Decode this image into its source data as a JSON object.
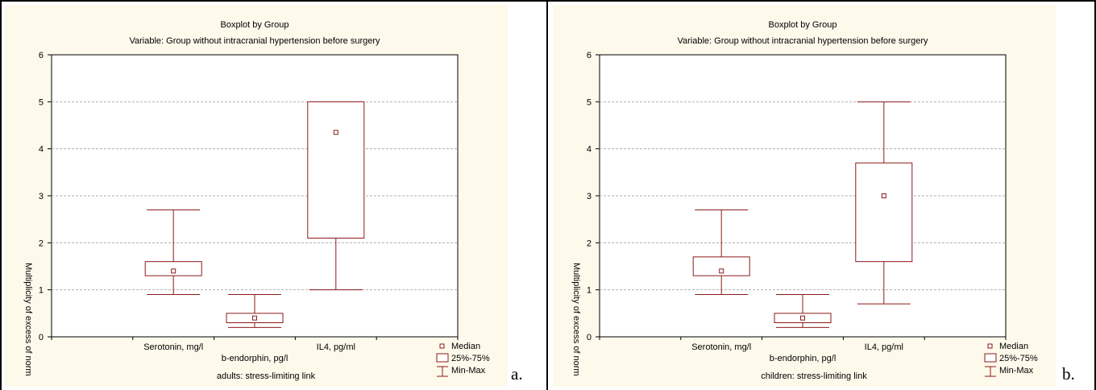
{
  "chart_data": [
    {
      "type": "boxplot",
      "title": "Boxplot by Group",
      "subtitle": "Variable: Group without intracranial hypertension before surgery",
      "ylabel": "Multiplicity of excess of norm",
      "footer": "adults: stress-limiting link",
      "ylim": [
        0,
        6
      ],
      "yticks": [
        "0",
        "1",
        "2",
        "3",
        "4",
        "5",
        "6"
      ],
      "grid": true,
      "legend_position": "bottom-right",
      "legend": [
        "Median",
        "25%-75%",
        "Min-Max"
      ],
      "panel_letter": "a.",
      "color": "#8b1a1a",
      "categories": [
        "Serotonin, mg/l",
        "b-endorphin, pg/l",
        "IL4, pg/ml"
      ],
      "boxes": [
        {
          "name": "Serotonin, mg/l",
          "min": 0.9,
          "q1": 1.3,
          "median": 1.4,
          "q3": 1.6,
          "max": 2.7
        },
        {
          "name": "b-endorphin, pg/l",
          "min": 0.2,
          "q1": 0.3,
          "median": 0.4,
          "q3": 0.5,
          "max": 0.9
        },
        {
          "name": "IL4, pg/ml",
          "min": 1.0,
          "q1": 2.1,
          "median": 4.35,
          "q3": 5.0,
          "max": 5.0
        }
      ]
    },
    {
      "type": "boxplot",
      "title": "Boxplot by Group",
      "subtitle": "Variable: Group without intracranial hypertension before surgery",
      "ylabel": "Multiplicity of excess of norm",
      "footer": "children: stress-limiting link",
      "ylim": [
        0,
        6
      ],
      "yticks": [
        "0",
        "1",
        "2",
        "3",
        "4",
        "5",
        "6"
      ],
      "grid": true,
      "legend_position": "bottom-right",
      "legend": [
        "Median",
        "25%-75%",
        "Min-Max"
      ],
      "panel_letter": "b.",
      "color": "#8b1a1a",
      "categories": [
        "Serotonin, mg/l",
        "b-endorphin, pg/l",
        "IL4, pg/ml"
      ],
      "boxes": [
        {
          "name": "Serotonin, mg/l",
          "min": 0.9,
          "q1": 1.3,
          "median": 1.4,
          "q3": 1.7,
          "max": 2.7
        },
        {
          "name": "b-endorphin, pg/l",
          "min": 0.2,
          "q1": 0.3,
          "median": 0.4,
          "q3": 0.5,
          "max": 0.9
        },
        {
          "name": "IL4, pg/ml",
          "min": 0.7,
          "q1": 1.6,
          "median": 3.0,
          "q3": 3.7,
          "max": 5.0
        }
      ]
    }
  ]
}
